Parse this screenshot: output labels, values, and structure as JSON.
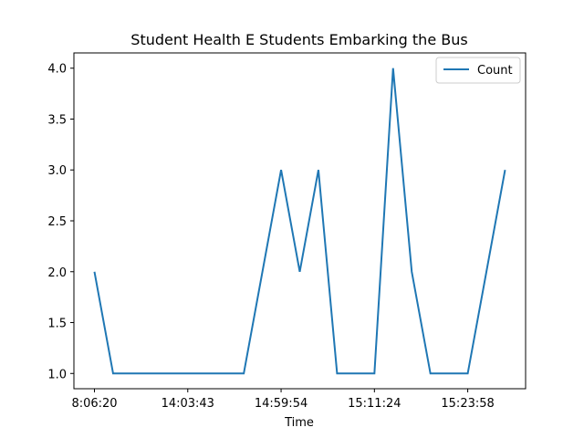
{
  "chart_data": {
    "type": "line",
    "title": "Student Health E Students Embarking the Bus",
    "xlabel": "Time",
    "ylabel": "",
    "x_tick_labels": [
      "8:06:20",
      "14:03:43",
      "14:59:54",
      "15:11:24",
      "15:23:58"
    ],
    "x_tick_index": [
      0,
      5,
      10,
      15,
      20
    ],
    "y_ticks": [
      1.0,
      1.5,
      2.0,
      2.5,
      3.0,
      3.5,
      4.0
    ],
    "y_tick_labels": [
      "1.0",
      "1.5",
      "2.0",
      "2.5",
      "3.0",
      "3.5",
      "4.0"
    ],
    "ylim": [
      0.85,
      4.15
    ],
    "xlim": [
      -1.1,
      23.1
    ],
    "legend": "top-right",
    "grid": false,
    "series": [
      {
        "name": "Count",
        "color": "#1f77b4",
        "values": [
          2,
          1,
          1,
          1,
          1,
          1,
          1,
          1,
          1,
          2,
          3,
          2,
          3,
          1,
          1,
          1,
          4,
          2,
          1,
          1,
          1,
          2,
          3
        ]
      }
    ]
  }
}
